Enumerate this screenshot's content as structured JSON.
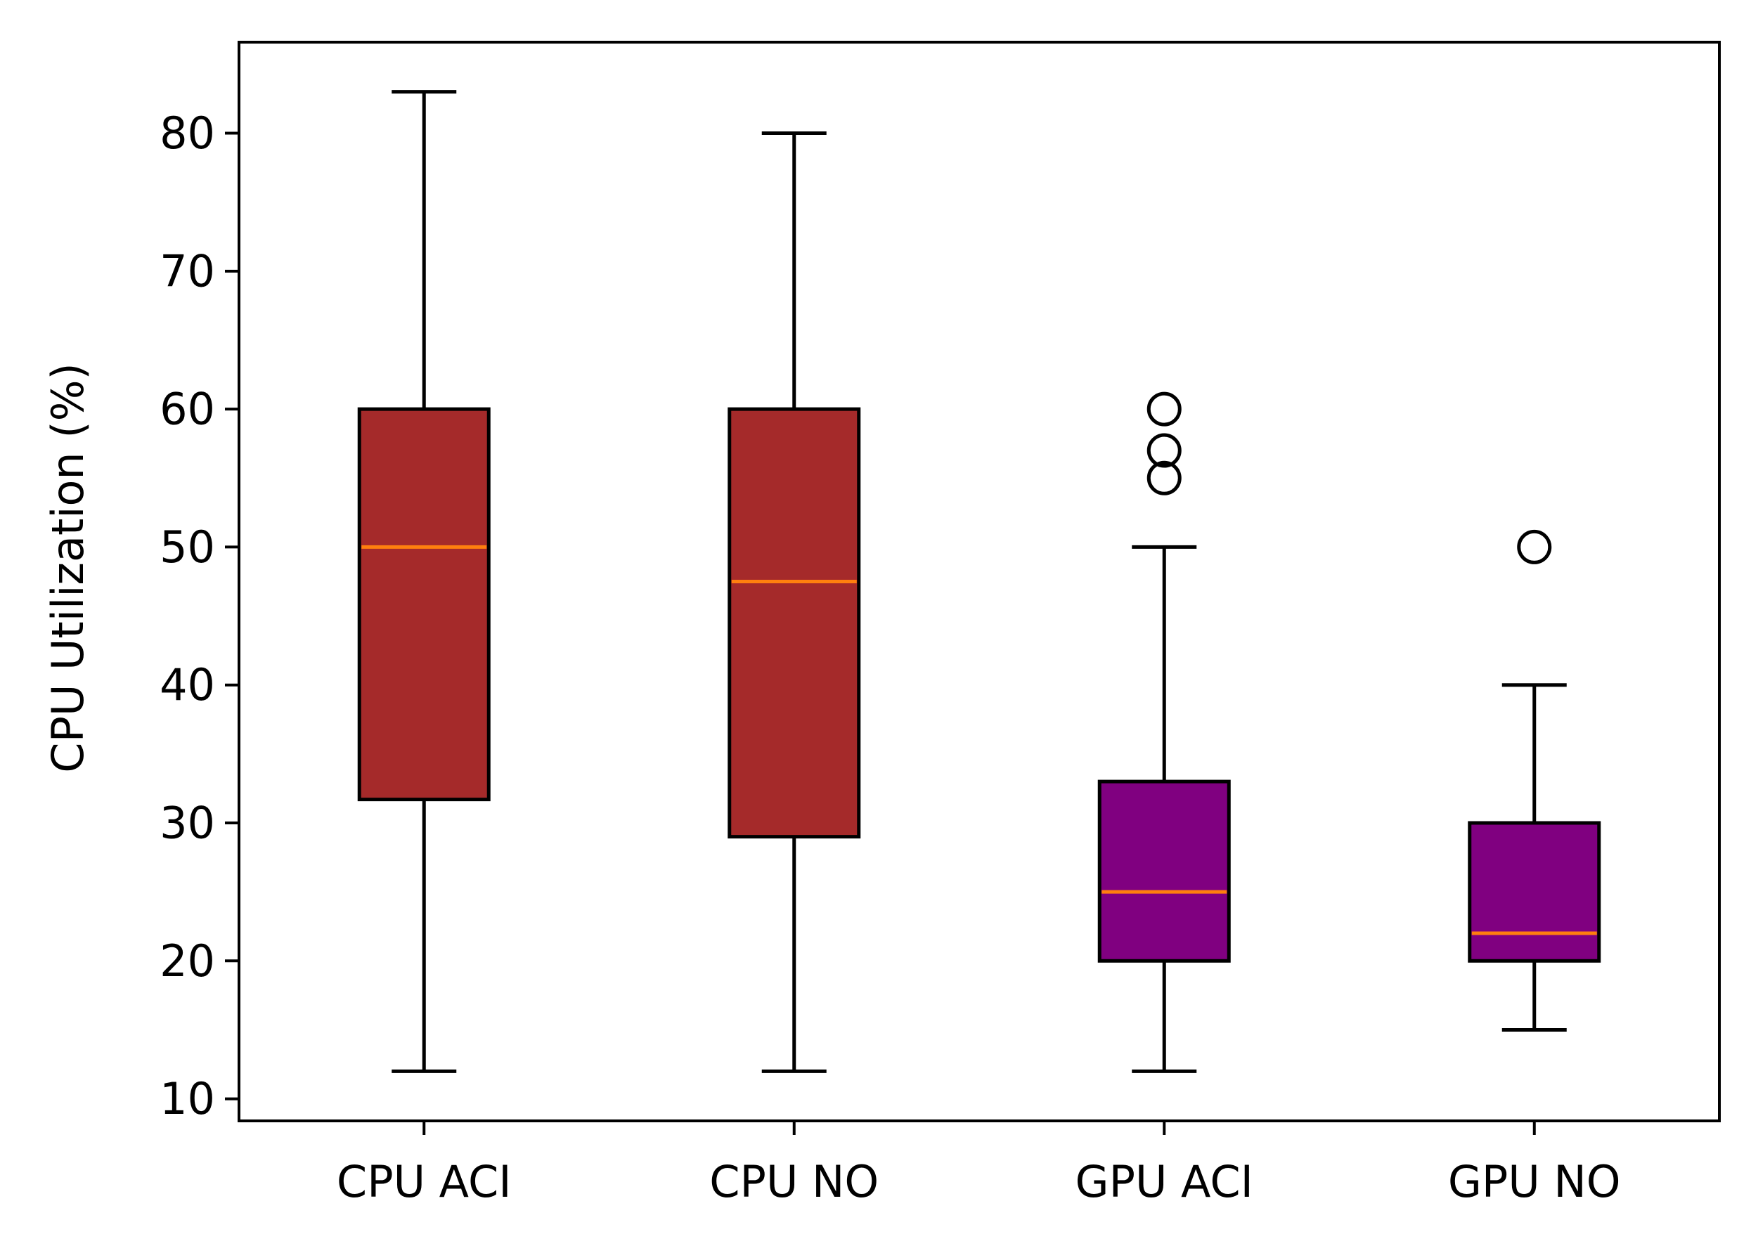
{
  "chart_data": {
    "type": "boxplot",
    "title": "",
    "xlabel": "",
    "ylabel": "CPU Utilization (%)",
    "ylim": [
      8.4,
      86.6
    ],
    "yticks": [
      10,
      20,
      30,
      40,
      50,
      60,
      70,
      80
    ],
    "ytick_labels": [
      "10",
      "20",
      "30",
      "40",
      "50",
      "60",
      "70",
      "80"
    ],
    "grid": false,
    "categories": [
      "CPU ACI",
      "CPU NO",
      "GPU ACI",
      "GPU NO"
    ],
    "boxes": [
      {
        "label": "CPU ACI",
        "whisker_low": 12,
        "q1": 31.7,
        "median": 50,
        "q3": 60,
        "whisker_high": 83,
        "outliers": [],
        "color": "#a52a2a"
      },
      {
        "label": "CPU NO",
        "whisker_low": 12,
        "q1": 29,
        "median": 47.5,
        "q3": 60,
        "whisker_high": 80,
        "outliers": [],
        "color": "#a52a2a"
      },
      {
        "label": "GPU ACI",
        "whisker_low": 12,
        "q1": 20,
        "median": 25,
        "q3": 33,
        "whisker_high": 50,
        "outliers": [
          55,
          57,
          60
        ],
        "color": "#800080"
      },
      {
        "label": "GPU NO",
        "whisker_low": 15,
        "q1": 20,
        "median": 22,
        "q3": 30,
        "whisker_high": 40,
        "outliers": [
          50
        ],
        "color": "#800080"
      }
    ],
    "median_color": "#ff7f0e",
    "line_color": "#000000"
  }
}
